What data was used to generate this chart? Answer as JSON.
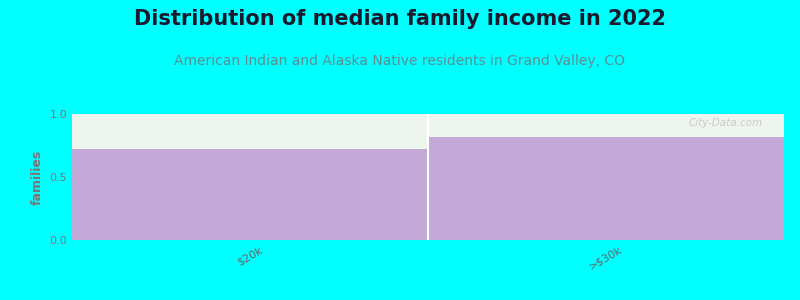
{
  "title": "Distribution of median family income in 2022",
  "subtitle": "American Indian and Alaska Native residents in Grand Valley, CO",
  "categories": [
    "$20k",
    ">$30k"
  ],
  "values": [
    0.72,
    0.82
  ],
  "bar_color": "#c4a8d8",
  "plot_bg_color": "#eef5ee",
  "background_color": "#00FFFF",
  "title_color": "#1a1a2e",
  "subtitle_color": "#5a9090",
  "ylabel": "families",
  "ylim": [
    0,
    1
  ],
  "yticks": [
    0,
    0.5,
    1
  ],
  "title_fontsize": 15,
  "subtitle_fontsize": 10,
  "ylabel_fontsize": 9,
  "tick_fontsize": 8,
  "watermark": "City-Data.com"
}
